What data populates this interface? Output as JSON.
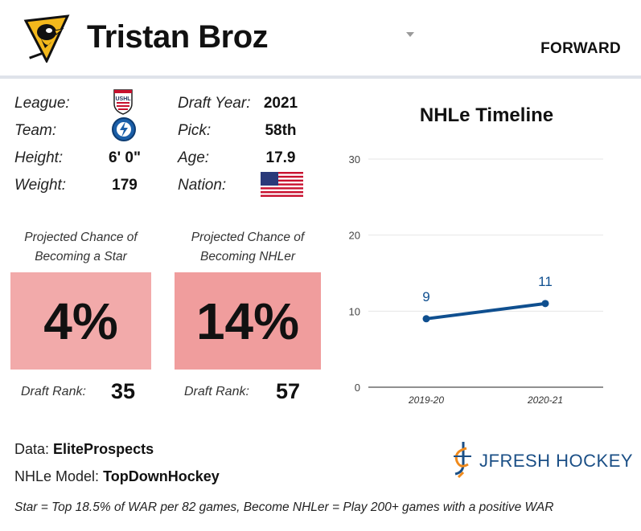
{
  "header": {
    "player_name": "Tristan Broz",
    "position": "FORWARD",
    "team_logo_icon": "penguins-logo-icon",
    "dropdown_icon": "chevron-down-icon"
  },
  "info": {
    "league_label": "League:",
    "league_icon": "ushl-logo-icon",
    "team_label": "Team:",
    "team_icon": "lightning-logo-icon",
    "height_label": "Height:",
    "height_value": "6' 0\"",
    "weight_label": "Weight:",
    "weight_value": "179",
    "draft_year_label": "Draft Year:",
    "draft_year_value": "2021",
    "pick_label": "Pick:",
    "pick_value": "58th",
    "age_label": "Age:",
    "age_value": "17.9",
    "nation_label": "Nation:",
    "nation_icon": "usa-flag-icon"
  },
  "projections": [
    {
      "caption_line1": "Projected Chance of",
      "caption_line2": "Becoming a Star",
      "percent": "4%",
      "box_color": "#f2aaaa",
      "rank_label": "Draft Rank:",
      "rank_value": "35"
    },
    {
      "caption_line1": "Projected Chance of",
      "caption_line2": "Becoming NHLer",
      "percent": "14%",
      "box_color": "#f09d9d",
      "rank_label": "Draft Rank:",
      "rank_value": "57"
    }
  ],
  "chart_data": {
    "type": "line",
    "title": "NHLe Timeline",
    "categories": [
      "2019-20",
      "2020-21"
    ],
    "series": [
      {
        "values": [
          9,
          11
        ],
        "color": "#0f4f8f"
      }
    ],
    "value_labels": [
      "9",
      "11"
    ],
    "yticks": [
      "0",
      "10",
      "20",
      "30"
    ],
    "ylim": [
      0,
      30
    ],
    "xlabel": "",
    "ylabel": "",
    "grid": true
  },
  "footer": {
    "data_label": "Data:",
    "data_value": "EliteProspects",
    "model_label": "NHLe Model:",
    "model_value": "TopDownHockey",
    "brand": "JFRESH HOCKEY",
    "brand_icon": "jfresh-logo-icon",
    "footnote": "Star = Top 18.5% of WAR per 82 games, Become NHLer = Play 200+ games with a positive WAR",
    "accent_blue": "#1b4f86",
    "accent_orange": "#f08a1c"
  }
}
